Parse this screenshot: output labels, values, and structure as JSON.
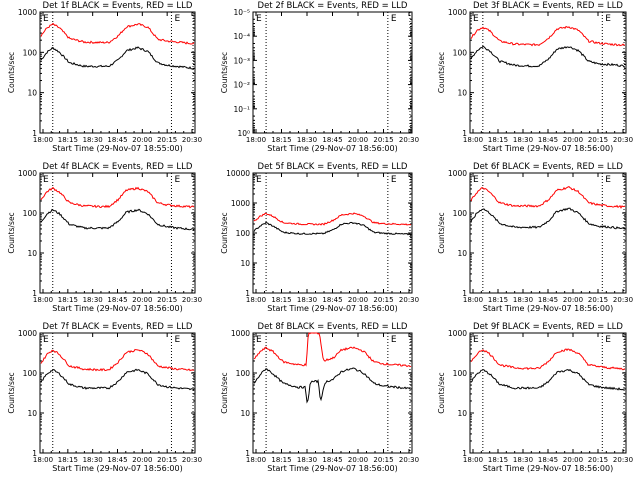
{
  "colors": {
    "events": "#000000",
    "lld": "#ff0000",
    "axes": "#000000",
    "background": "#ffffff"
  },
  "chart_data": [
    {
      "type": "line",
      "title": "Det 1f BLACK = Events, RED = LLD",
      "ylabel": "Counts/sec",
      "xlabel": "Start Time (29-Nov-07 18:55:00)",
      "yscale": "log",
      "ylim": [
        1,
        1000
      ],
      "ytick_labels": [
        "1",
        "10",
        "100",
        "1000"
      ],
      "xlim": [
        "18:00",
        "20:38"
      ],
      "xtick_labels": [
        "18:00",
        "18:15",
        "18:30",
        "18:45",
        "20:00",
        "20:15",
        "20:30"
      ],
      "vertical_lines": [
        "18:13",
        "20:14",
        "20:36"
      ],
      "markers": [
        "E",
        "E"
      ],
      "series": [
        {
          "name": "Events",
          "color": "#000000",
          "x": [
            "18:00",
            "18:07",
            "18:13",
            "18:20",
            "18:30",
            "18:45",
            "19:00",
            "19:10",
            "19:20",
            "19:28",
            "19:40",
            "19:50",
            "20:00",
            "20:10",
            "20:20",
            "20:30",
            "20:38"
          ],
          "values": [
            60,
            100,
            130,
            100,
            55,
            45,
            45,
            45,
            65,
            110,
            130,
            105,
            55,
            48,
            45,
            42,
            40
          ]
        },
        {
          "name": "LLD",
          "color": "#ff0000",
          "x": [
            "18:00",
            "18:07",
            "18:13",
            "18:20",
            "18:30",
            "18:45",
            "19:00",
            "19:10",
            "19:20",
            "19:28",
            "19:40",
            "19:50",
            "20:00",
            "20:10",
            "20:20",
            "20:30",
            "20:38"
          ],
          "values": [
            240,
            400,
            500,
            400,
            220,
            180,
            175,
            175,
            260,
            430,
            500,
            420,
            210,
            190,
            180,
            170,
            165
          ]
        }
      ]
    },
    {
      "type": "line",
      "title": "Det 2f BLACK = Events, RED = LLD",
      "ylabel": "Counts/sec",
      "xlabel": "Start Time (29-Nov-07 18:56:00)",
      "yscale": "log",
      "ylim": [
        1,
        1e-05
      ],
      "ytick_labels": [
        "10⁻⁵",
        "10⁻⁴",
        "10⁻³",
        "10⁻²",
        "10⁻¹",
        "10⁰"
      ],
      "xlim": [
        "18:00",
        "20:38"
      ],
      "xtick_labels": [
        "18:00",
        "18:15",
        "18:30",
        "18:45",
        "20:00",
        "20:15",
        "20:30"
      ],
      "vertical_lines": [
        "18:13",
        "20:14",
        "20:36"
      ],
      "markers": [
        "E",
        "E"
      ],
      "series": []
    },
    {
      "type": "line",
      "title": "Det 3f BLACK = Events, RED = LLD",
      "ylabel": "Counts/sec",
      "xlabel": "Start Time (29-Nov-07 18:56:00)",
      "yscale": "log",
      "ylim": [
        1,
        1000
      ],
      "ytick_labels": [
        "1",
        "10",
        "100",
        "1000"
      ],
      "xlim": [
        "18:00",
        "20:38"
      ],
      "xtick_labels": [
        "18:00",
        "18:15",
        "18:30",
        "18:45",
        "20:00",
        "20:15",
        "20:30"
      ],
      "vertical_lines": [
        "18:13",
        "20:14",
        "20:36"
      ],
      "markers": [
        "E",
        "E"
      ],
      "series": [
        {
          "name": "Events",
          "color": "#000000",
          "x": [
            "18:00",
            "18:07",
            "18:13",
            "18:20",
            "18:30",
            "18:45",
            "19:00",
            "19:10",
            "19:20",
            "19:28",
            "19:40",
            "19:50",
            "20:00",
            "20:10",
            "20:20",
            "20:30",
            "20:38"
          ],
          "values": [
            65,
            110,
            140,
            110,
            60,
            48,
            46,
            46,
            70,
            120,
            140,
            110,
            60,
            52,
            50,
            48,
            45
          ]
        },
        {
          "name": "LLD",
          "color": "#ff0000",
          "x": [
            "18:00",
            "18:07",
            "18:13",
            "18:20",
            "18:30",
            "18:45",
            "19:00",
            "19:10",
            "19:20",
            "19:28",
            "19:40",
            "19:50",
            "20:00",
            "20:10",
            "20:20",
            "20:30",
            "20:38"
          ],
          "values": [
            210,
            350,
            420,
            340,
            190,
            160,
            155,
            155,
            230,
            380,
            430,
            350,
            190,
            170,
            160,
            155,
            150
          ]
        }
      ]
    },
    {
      "type": "line",
      "title": "Det 4f BLACK = Events, RED = LLD",
      "ylabel": "Counts/sec",
      "xlabel": "Start Time (29-Nov-07 18:56:00)",
      "yscale": "log",
      "ylim": [
        1,
        1000
      ],
      "ytick_labels": [
        "1",
        "10",
        "100",
        "1000"
      ],
      "xlim": [
        "18:00",
        "20:38"
      ],
      "xtick_labels": [
        "18:00",
        "18:15",
        "18:30",
        "18:45",
        "20:00",
        "20:15",
        "20:30"
      ],
      "vertical_lines": [
        "18:13",
        "20:14",
        "20:36"
      ],
      "markers": [
        "E",
        "E"
      ],
      "series": [
        {
          "name": "Events",
          "color": "#000000",
          "x": [
            "18:00",
            "18:07",
            "18:13",
            "18:20",
            "18:30",
            "18:45",
            "19:00",
            "19:10",
            "19:20",
            "19:28",
            "19:40",
            "19:50",
            "20:00",
            "20:10",
            "20:20",
            "20:30",
            "20:38"
          ],
          "values": [
            55,
            95,
            120,
            95,
            52,
            42,
            42,
            42,
            62,
            105,
            120,
            95,
            52,
            45,
            42,
            40,
            38
          ]
        },
        {
          "name": "LLD",
          "color": "#ff0000",
          "x": [
            "18:00",
            "18:07",
            "18:13",
            "18:20",
            "18:30",
            "18:45",
            "19:00",
            "19:10",
            "19:20",
            "19:28",
            "19:40",
            "19:50",
            "20:00",
            "20:10",
            "20:20",
            "20:30",
            "20:38"
          ],
          "values": [
            200,
            340,
            420,
            330,
            180,
            150,
            145,
            145,
            220,
            370,
            420,
            340,
            180,
            160,
            150,
            145,
            140
          ]
        }
      ]
    },
    {
      "type": "line",
      "title": "Det 5f BLACK = Events, RED = LLD",
      "ylabel": "Counts/sec",
      "xlabel": "Start Time (29-Nov-07 18:56:00)",
      "yscale": "log",
      "ylim": [
        1,
        10000
      ],
      "ytick_labels": [
        "1",
        "10",
        "100",
        "1000",
        "10000"
      ],
      "xlim": [
        "18:00",
        "20:38"
      ],
      "xtick_labels": [
        "18:00",
        "18:15",
        "18:30",
        "18:45",
        "20:00",
        "20:15",
        "20:30"
      ],
      "vertical_lines": [
        "18:13",
        "20:14",
        "20:36"
      ],
      "markers": [
        "E",
        "E"
      ],
      "series": [
        {
          "name": "Events",
          "color": "#000000",
          "x": [
            "18:00",
            "18:07",
            "18:13",
            "18:20",
            "18:30",
            "18:45",
            "19:00",
            "19:10",
            "19:20",
            "19:28",
            "19:40",
            "19:50",
            "20:00",
            "20:10",
            "20:20",
            "20:30",
            "20:38"
          ],
          "values": [
            110,
            170,
            220,
            170,
            105,
            95,
            95,
            95,
            130,
            200,
            220,
            180,
            105,
            98,
            95,
            92,
            90
          ]
        },
        {
          "name": "LLD",
          "color": "#ff0000",
          "x": [
            "18:00",
            "18:07",
            "18:13",
            "18:20",
            "18:30",
            "18:45",
            "19:00",
            "19:10",
            "19:20",
            "19:28",
            "19:40",
            "19:50",
            "20:00",
            "20:10",
            "20:20",
            "20:30",
            "20:38"
          ],
          "values": [
            230,
            360,
            450,
            360,
            220,
            200,
            195,
            195,
            270,
            400,
            450,
            370,
            220,
            205,
            200,
            195,
            190
          ]
        }
      ]
    },
    {
      "type": "line",
      "title": "Det 6f BLACK = Events, RED = LLD",
      "ylabel": "Counts/sec",
      "xlabel": "Start Time (29-Nov-07 18:56:00)",
      "yscale": "log",
      "ylim": [
        1,
        1000
      ],
      "ytick_labels": [
        "1",
        "10",
        "100",
        "1000"
      ],
      "xlim": [
        "18:00",
        "20:38"
      ],
      "xtick_labels": [
        "18:00",
        "18:15",
        "18:30",
        "18:45",
        "20:00",
        "20:15",
        "20:30"
      ],
      "vertical_lines": [
        "18:13",
        "20:14",
        "20:36"
      ],
      "markers": [
        "E",
        "E"
      ],
      "series": [
        {
          "name": "Events",
          "color": "#000000",
          "x": [
            "18:00",
            "18:07",
            "18:13",
            "18:20",
            "18:30",
            "18:45",
            "19:00",
            "19:10",
            "19:20",
            "19:28",
            "19:40",
            "19:50",
            "20:00",
            "20:10",
            "20:20",
            "20:30",
            "20:38"
          ],
          "values": [
            55,
            100,
            130,
            100,
            55,
            44,
            44,
            44,
            65,
            110,
            130,
            100,
            55,
            47,
            45,
            42,
            40
          ]
        },
        {
          "name": "LLD",
          "color": "#ff0000",
          "x": [
            "18:00",
            "18:07",
            "18:13",
            "18:20",
            "18:30",
            "18:45",
            "19:00",
            "19:10",
            "19:20",
            "19:28",
            "19:40",
            "19:50",
            "20:00",
            "20:10",
            "20:20",
            "20:30",
            "20:38"
          ],
          "values": [
            190,
            330,
            430,
            330,
            180,
            150,
            150,
            150,
            220,
            370,
            440,
            340,
            180,
            160,
            150,
            145,
            140
          ]
        }
      ]
    },
    {
      "type": "line",
      "title": "Det 7f BLACK = Events, RED = LLD",
      "ylabel": "Counts/sec",
      "xlabel": "Start Time (29-Nov-07 18:56:00)",
      "yscale": "log",
      "ylim": [
        1,
        1000
      ],
      "ytick_labels": [
        "1",
        "10",
        "100",
        "1000"
      ],
      "xlim": [
        "18:00",
        "20:38"
      ],
      "xtick_labels": [
        "18:00",
        "18:15",
        "18:30",
        "18:45",
        "20:00",
        "20:15",
        "20:30"
      ],
      "vertical_lines": [
        "18:13",
        "20:14",
        "20:36"
      ],
      "markers": [
        "E",
        "E"
      ],
      "series": [
        {
          "name": "Events",
          "color": "#000000",
          "x": [
            "18:00",
            "18:07",
            "18:13",
            "18:20",
            "18:30",
            "18:45",
            "19:00",
            "19:10",
            "19:20",
            "19:28",
            "19:40",
            "19:50",
            "20:00",
            "20:10",
            "20:20",
            "20:30",
            "20:38"
          ],
          "values": [
            55,
            95,
            120,
            95,
            52,
            42,
            42,
            42,
            62,
            105,
            120,
            95,
            52,
            45,
            42,
            40,
            38
          ]
        },
        {
          "name": "LLD",
          "color": "#ff0000",
          "x": [
            "18:00",
            "18:07",
            "18:13",
            "18:20",
            "18:30",
            "18:45",
            "19:00",
            "19:10",
            "19:20",
            "19:28",
            "19:40",
            "19:50",
            "20:00",
            "20:10",
            "20:20",
            "20:30",
            "20:38"
          ],
          "values": [
            160,
            290,
            380,
            290,
            150,
            125,
            120,
            120,
            190,
            330,
            380,
            300,
            150,
            135,
            125,
            120,
            115
          ]
        }
      ]
    },
    {
      "type": "line",
      "title": "Det 8f BLACK = Events, RED = LLD",
      "ylabel": "Counts/sec",
      "xlabel": "Start Time (29-Nov-07 18:56:00)",
      "yscale": "log",
      "ylim": [
        1,
        1000
      ],
      "ytick_labels": [
        "1",
        "10",
        "100",
        "1000"
      ],
      "xlim": [
        "18:00",
        "20:38"
      ],
      "xtick_labels": [
        "18:00",
        "18:15",
        "18:30",
        "18:45",
        "20:00",
        "20:15",
        "20:30"
      ],
      "vertical_lines": [
        "18:13",
        "20:14",
        "20:36"
      ],
      "markers": [
        "E",
        "E"
      ],
      "series": [
        {
          "name": "Events",
          "color": "#000000",
          "x": [
            "18:00",
            "18:07",
            "18:13",
            "18:20",
            "18:30",
            "18:45",
            "18:52",
            "18:54",
            "18:57",
            "19:05",
            "19:07",
            "19:12",
            "19:20",
            "19:28",
            "19:40",
            "19:50",
            "20:00",
            "20:10",
            "20:20",
            "20:30",
            "20:38"
          ],
          "values": [
            50,
            90,
            130,
            95,
            55,
            44,
            44,
            15,
            60,
            62,
            20,
            60,
            70,
            110,
            130,
            100,
            55,
            47,
            45,
            42,
            40
          ]
        },
        {
          "name": "LLD",
          "color": "#ff0000",
          "x": [
            "18:00",
            "18:07",
            "18:13",
            "18:20",
            "18:30",
            "18:45",
            "18:53",
            "18:55",
            "18:58",
            "19:04",
            "19:06",
            "19:10",
            "19:20",
            "19:28",
            "19:40",
            "19:50",
            "20:00",
            "20:10",
            "20:20",
            "20:30",
            "20:38"
          ],
          "values": [
            200,
            340,
            430,
            340,
            190,
            160,
            160,
            1000,
            1000,
            1000,
            1000,
            200,
            240,
            380,
            430,
            350,
            190,
            170,
            160,
            155,
            150
          ]
        }
      ]
    },
    {
      "type": "line",
      "title": "Det 9f BLACK = Events, RED = LLD",
      "ylabel": "Counts/sec",
      "xlabel": "Start Time (29-Nov-07 18:56:00)",
      "yscale": "log",
      "ylim": [
        1,
        1000
      ],
      "ytick_labels": [
        "1",
        "10",
        "100",
        "1000"
      ],
      "xlim": [
        "18:00",
        "20:38"
      ],
      "xtick_labels": [
        "18:00",
        "18:15",
        "18:30",
        "18:45",
        "20:00",
        "20:15",
        "20:30"
      ],
      "vertical_lines": [
        "18:13",
        "20:14",
        "20:36"
      ],
      "markers": [
        "E",
        "E"
      ],
      "series": [
        {
          "name": "Events",
          "color": "#000000",
          "x": [
            "18:00",
            "18:07",
            "18:13",
            "18:20",
            "18:30",
            "18:45",
            "19:00",
            "19:10",
            "19:20",
            "19:28",
            "19:40",
            "19:50",
            "20:00",
            "20:10",
            "20:20",
            "20:30",
            "20:38"
          ],
          "values": [
            55,
            95,
            120,
            95,
            52,
            42,
            42,
            42,
            62,
            105,
            120,
            95,
            52,
            45,
            42,
            40,
            38
          ]
        },
        {
          "name": "LLD",
          "color": "#ff0000",
          "x": [
            "18:00",
            "18:07",
            "18:13",
            "18:20",
            "18:30",
            "18:45",
            "19:00",
            "19:10",
            "19:20",
            "19:28",
            "19:40",
            "19:50",
            "20:00",
            "20:10",
            "20:20",
            "20:30",
            "20:38"
          ],
          "values": [
            170,
            300,
            390,
            300,
            160,
            135,
            130,
            130,
            200,
            340,
            390,
            310,
            160,
            145,
            135,
            130,
            125
          ]
        }
      ]
    }
  ]
}
